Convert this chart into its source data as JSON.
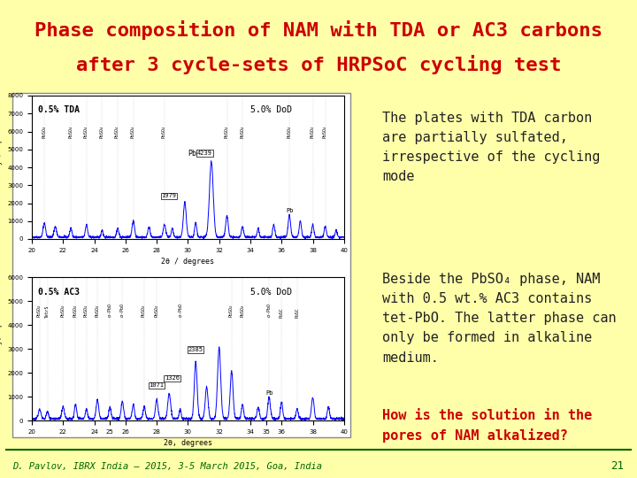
{
  "title_line1": "Phase composition of NAM with TDA or AC3 carbons",
  "title_line2": "after 3 cycle-sets of HRPSoC cycling test",
  "title_color": "#cc0000",
  "title_fontsize": 16,
  "bg_color_top": "#c8d8a0",
  "bg_color_main": "#ffffaa",
  "footer_text": "D. Pavlov, IBRX India – 2015, 3-5 March 2015, Goa, India",
  "footer_page": "21",
  "footer_color_text": "#006600",
  "text1": "The plates with TDA carbon\nare partially sulfated,\nirrespective of the cycling\nmode",
  "text3": "How is the solution in the\npores of NAM alkalized?",
  "text3_color": "#cc0000",
  "text_fontsize": 11,
  "text_color": "#222222",
  "panel_bg": "#ffffff",
  "panel_border": "#888888"
}
